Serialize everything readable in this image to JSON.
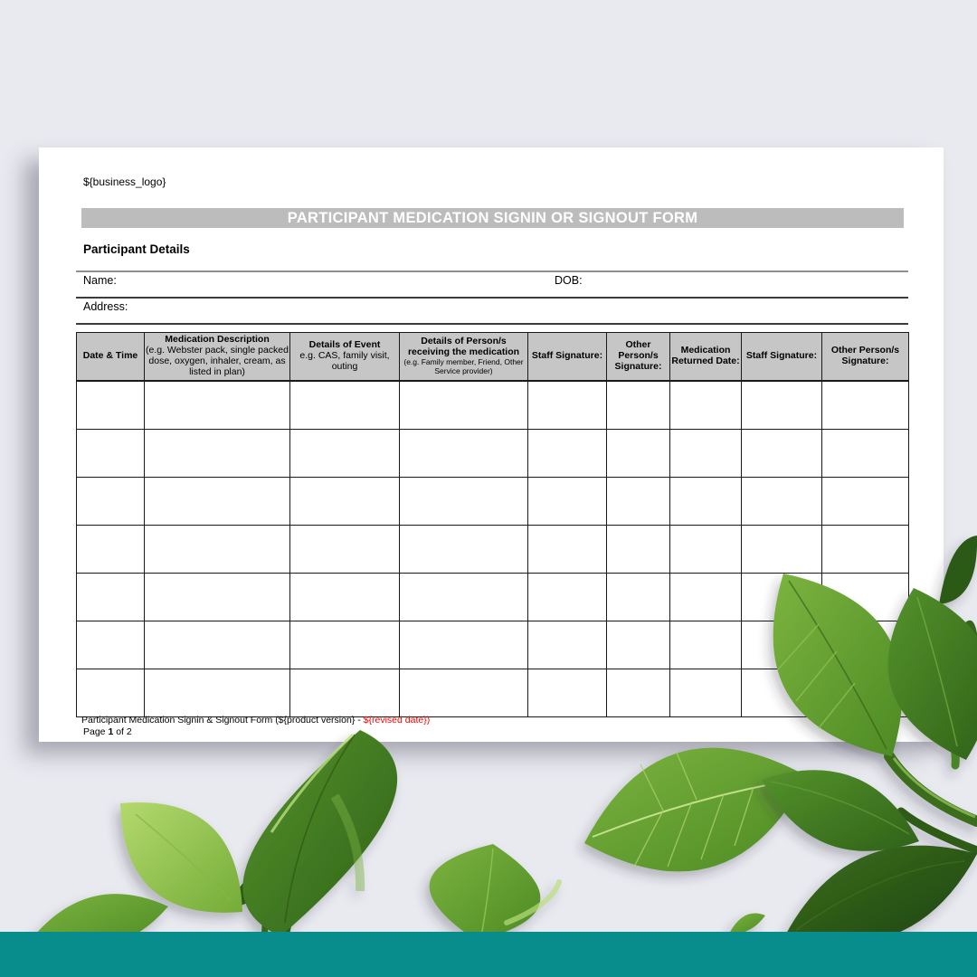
{
  "document": {
    "business_logo_placeholder": "${business_logo}",
    "title": "PARTICIPANT MEDICATION SIGNIN OR SIGNOUT FORM",
    "section_heading": "Participant Details",
    "fields": {
      "name_label": "Name:",
      "dob_label": "DOB:",
      "address_label": "Address:"
    },
    "table": {
      "empty_rows": 7,
      "columns": [
        {
          "title": "Date & Time",
          "sub": ""
        },
        {
          "title": "Medication Description",
          "sub": "(e.g. Webster pack, single packed dose, oxygen, inhaler, cream, as listed in plan)"
        },
        {
          "title": "Details of Event",
          "sub": "e.g. CAS, family visit, outing"
        },
        {
          "title": "Details of Person/s receiving the medication",
          "sub": "(e.g. Family member, Friend, Other Service provider)"
        },
        {
          "title": "Staff Signature:",
          "sub": ""
        },
        {
          "title": "Other Person/s Signature:",
          "sub": ""
        },
        {
          "title": "Medication Returned Date:",
          "sub": ""
        },
        {
          "title": "Staff Signature:",
          "sub": ""
        },
        {
          "title": "Other Person/s Signature:",
          "sub": ""
        }
      ]
    },
    "footer": {
      "line_black": "Participant Medication Signin & Signout Form (${product version} - ",
      "line_red": "${revised date})",
      "page_prefix": "Page ",
      "page_number": "1",
      "page_suffix": " of 2"
    }
  },
  "colors": {
    "background": "#e9eaf0",
    "banner_gray": "#bcbcbc",
    "table_header_gray": "#c6c6c6",
    "footer_red": "#fe0000",
    "teal_bar": "#088c8c",
    "leaf_green_light": "#a9d264",
    "leaf_green_dark": "#2c5a14"
  }
}
